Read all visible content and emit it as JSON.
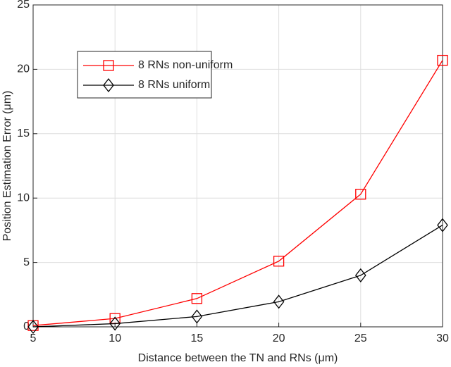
{
  "chart_data": {
    "type": "line",
    "x_label": "Distance between the TN and RNs (μm)",
    "y_label": "Position Estimation Error (μm)",
    "x": [
      5,
      10,
      15,
      20,
      25,
      30
    ],
    "series": [
      {
        "name": "8 RNs non-uniform",
        "color": "#ff0000",
        "marker": "square",
        "values": [
          0.1,
          0.65,
          2.2,
          5.1,
          10.3,
          20.7
        ]
      },
      {
        "name": "8 RNs uniform",
        "color": "#000000",
        "marker": "diamond",
        "values": [
          0.0,
          0.25,
          0.8,
          1.95,
          4.0,
          7.9
        ]
      }
    ],
    "xlim": [
      5,
      30
    ],
    "xticks": [
      5,
      10,
      15,
      20,
      25,
      30
    ],
    "ylim": [
      0,
      25
    ],
    "yticks": [
      0,
      5,
      10,
      15,
      20,
      25
    ],
    "grid": true,
    "legend": "upper left"
  }
}
